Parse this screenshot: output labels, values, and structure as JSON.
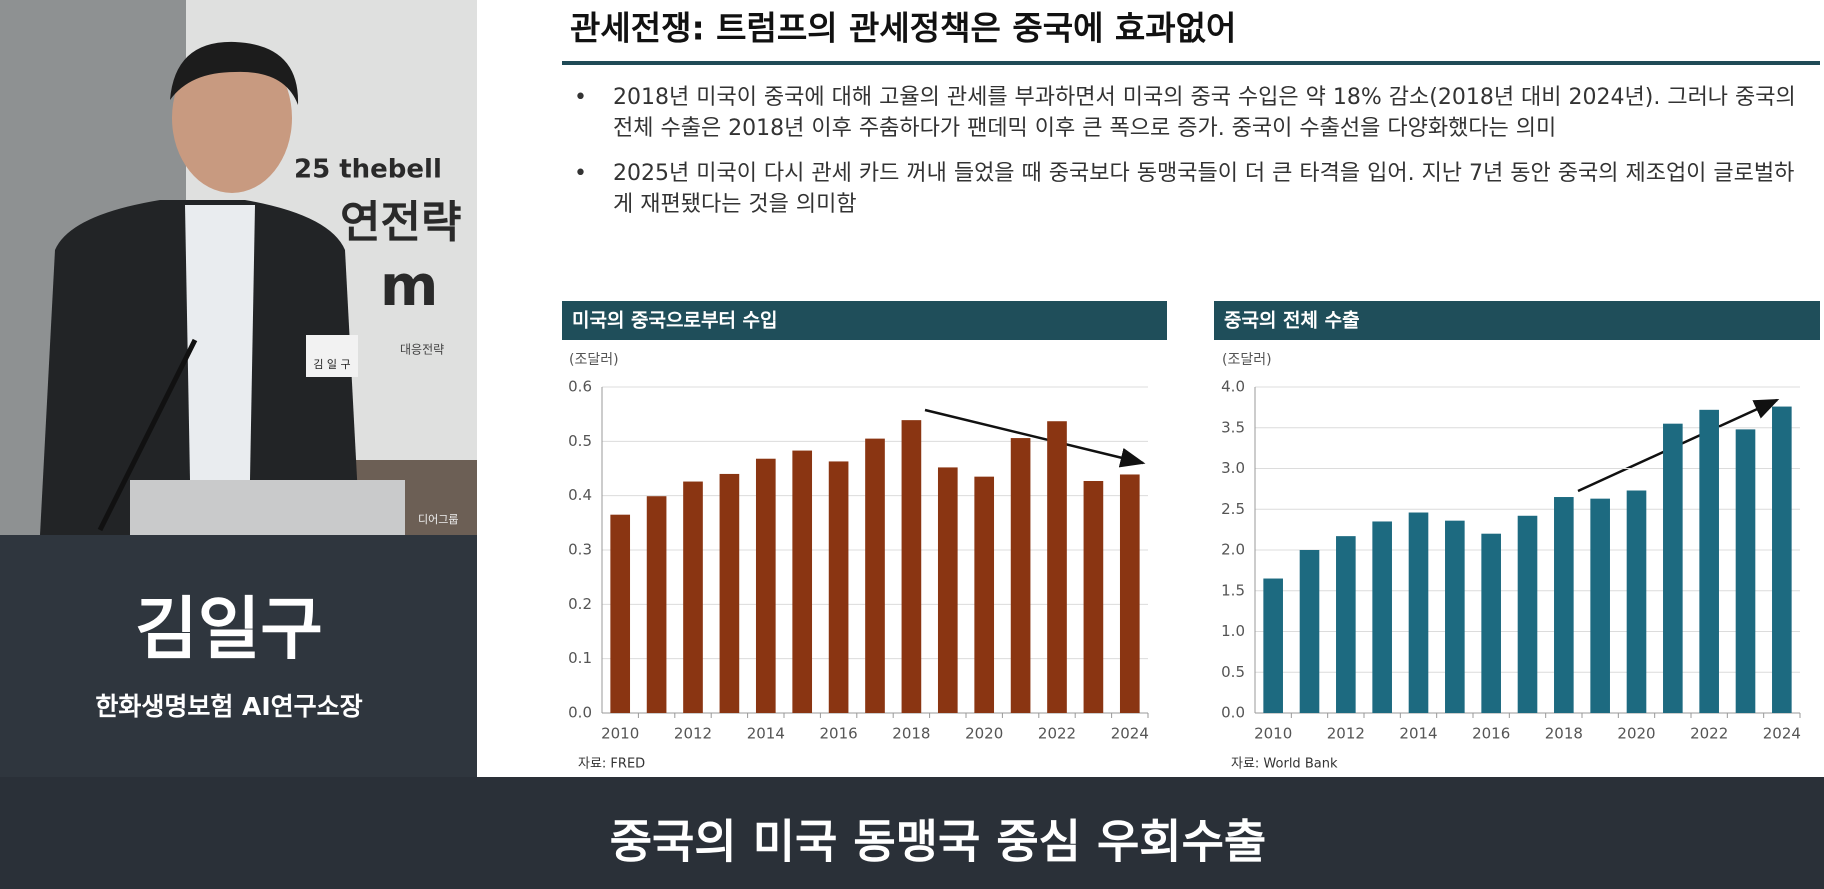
{
  "backdrop": {
    "lines": [
      "25 thebell",
      "연전략",
      "m",
      "대응전략",
      "디어그룹"
    ],
    "badge": "김 일 구"
  },
  "speaker": {
    "name": "김일구",
    "role": "한화생명보험 AI연구소장"
  },
  "slide": {
    "title": "관세전쟁: 트럼프의 관세정책은 중국에 효과없어",
    "bullets": [
      "2018년 미국이 중국에 대해 고율의 관세를 부과하면서 미국의 중국 수입은 약 18% 감소(2018년 대비 2024년). 그러나 중국의 전체 수출은 2018년 이후 주춤하다가 팬데믹 이후 큰 폭으로 증가. 중국이 수출선을 다양화했다는 의미",
      "2025년 미국이 다시 관세 카드 꺼내 들었을 때 중국보다 동맹국들이 더 큰 타격을 입어. 지난 7년 동안 중국의 제조업이 글로벌하게 재편됐다는 것을 의미함"
    ]
  },
  "chart_data": [
    {
      "type": "bar",
      "title": "미국의 중국으로부터 수입",
      "unit": "(조달러)",
      "source": "자료: FRED",
      "color": "#8a3512",
      "categories": [
        "2010",
        null,
        "2012",
        null,
        "2014",
        null,
        "2016",
        null,
        "2018",
        null,
        "2020",
        null,
        "2022",
        null,
        "2024"
      ],
      "values": [
        0.365,
        0.399,
        0.426,
        0.44,
        0.468,
        0.483,
        0.463,
        0.505,
        0.539,
        0.452,
        0.435,
        0.506,
        0.537,
        0.427,
        0.439
      ],
      "ylim": [
        0,
        0.6
      ],
      "yticks": [
        {
          "value": 0,
          "label": "0.0"
        },
        0.1,
        0.2,
        0.3,
        0.4,
        0.5,
        0.6
      ],
      "grid": true
    },
    {
      "type": "bar",
      "title": "중국의 전체 수출",
      "unit": "(조달러)",
      "source": "자료: World Bank",
      "color": "#1d6a80",
      "categories": [
        "2010",
        null,
        "2012",
        null,
        "2014",
        null,
        "2016",
        null,
        "2018",
        null,
        "2020",
        null,
        "2022",
        null,
        "2024"
      ],
      "values": [
        1.65,
        2.0,
        2.17,
        2.35,
        2.46,
        2.36,
        2.2,
        2.42,
        2.65,
        2.63,
        2.73,
        3.55,
        3.72,
        3.48,
        3.76
      ],
      "ylim": [
        0,
        4
      ],
      "yticks": [
        {
          "value": 0,
          "label": "0.0"
        },
        0.5,
        {
          "value": 1,
          "label": "1.0"
        },
        1.5,
        {
          "value": 2,
          "label": "2.0"
        },
        2.5,
        {
          "value": 3,
          "label": "3.0"
        },
        3.5,
        {
          "value": 4,
          "label": "4.0"
        }
      ],
      "grid": true
    }
  ],
  "caption": "중국의 미국 동맹국 중심 우회수출"
}
